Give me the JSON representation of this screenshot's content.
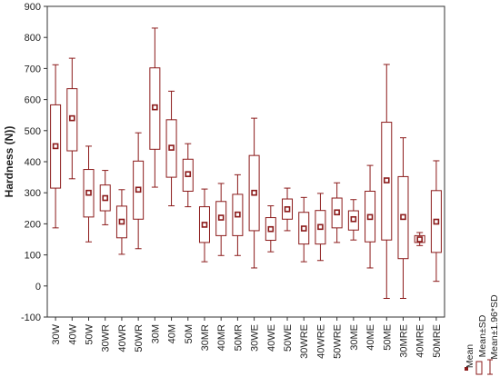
{
  "chart_data": {
    "type": "box",
    "ylabel": "Hardness (N))",
    "ylim": [
      -100,
      900
    ],
    "yticks": [
      -100,
      0,
      100,
      200,
      300,
      400,
      500,
      600,
      700,
      800,
      900
    ],
    "grid": false,
    "color": "#8b1a1a",
    "categories": [
      "30W",
      "40W",
      "50W",
      "30WR",
      "40WR",
      "50WR",
      "30M",
      "40M",
      "50M",
      "30MR",
      "40MR",
      "50MR",
      "30WE",
      "40WE",
      "50WE",
      "30WRE",
      "40WRE",
      "50WRE",
      "30ME",
      "40ME",
      "50ME",
      "30MRE",
      "40MRE",
      "50MRE"
    ],
    "series": [
      {
        "name": "Mean",
        "values": [
          450,
          540,
          300,
          283,
          207,
          310,
          575,
          445,
          360,
          197,
          220,
          230,
          300,
          183,
          247,
          185,
          190,
          237,
          215,
          222,
          340,
          222,
          150,
          207
        ]
      },
      {
        "name": "Mean±SD",
        "low": [
          315,
          435,
          222,
          242,
          155,
          215,
          440,
          350,
          305,
          140,
          162,
          162,
          178,
          147,
          215,
          135,
          135,
          187,
          180,
          142,
          148,
          88,
          140,
          108
        ],
        "high": [
          583,
          635,
          375,
          325,
          257,
          402,
          702,
          535,
          408,
          255,
          272,
          295,
          420,
          220,
          280,
          237,
          243,
          283,
          242,
          305,
          527,
          352,
          162,
          307
        ]
      },
      {
        "name": "Mean±1.96*SD",
        "low": [
          187,
          345,
          142,
          197,
          102,
          120,
          318,
          258,
          255,
          78,
          98,
          98,
          58,
          110,
          178,
          78,
          82,
          140,
          148,
          58,
          -40,
          -40,
          130,
          15
        ],
        "high": [
          712,
          733,
          450,
          372,
          310,
          493,
          830,
          627,
          458,
          312,
          330,
          358,
          540,
          258,
          315,
          285,
          298,
          332,
          278,
          388,
          713,
          477,
          172,
          403
        ]
      }
    ],
    "legend": {
      "position": "right",
      "entries": [
        "Mean",
        "Mean±SD",
        "Mean±1.96*SD"
      ]
    }
  }
}
